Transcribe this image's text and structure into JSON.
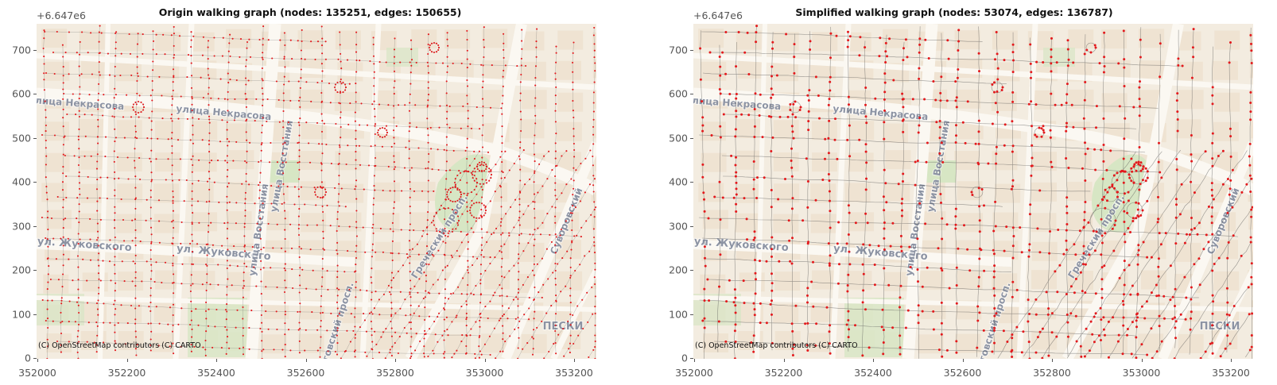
{
  "panels": [
    {
      "id": "left",
      "title": "Origin walking graph (nodes: 135251, edges: 150655)",
      "y_offset_label": "+6.647e6",
      "x_ticks": [
        "352000",
        "352200",
        "352400",
        "352600",
        "352800",
        "353000",
        "353200"
      ],
      "y_ticks": [
        "0",
        "100",
        "200",
        "300",
        "400",
        "500",
        "600",
        "700"
      ],
      "attribution": "(C) OpenStreetMap contributors (C) CARTO",
      "style": "origin"
    },
    {
      "id": "right",
      "title": "Simplified walking graph (nodes: 53074, edges: 136787)",
      "y_offset_label": "+6.647e6",
      "x_ticks": [
        "352000",
        "352200",
        "352400",
        "352600",
        "352800",
        "353000",
        "353200"
      ],
      "y_ticks": [
        "0",
        "100",
        "200",
        "300",
        "400",
        "500",
        "600",
        "700"
      ],
      "attribution": "(C) OpenStreetMap contributors (C) CARTO",
      "style": "simplified"
    }
  ],
  "map_labels": [
    {
      "text": "улица Некрасова"
    },
    {
      "text": "улица Некрасова"
    },
    {
      "text": "ул. Жуковского"
    },
    {
      "text": "ул. Жуковского"
    },
    {
      "text": "улица Восстания"
    },
    {
      "text": "улица Восстания"
    },
    {
      "text": "Лиговский просп."
    },
    {
      "text": "Греческий просп."
    },
    {
      "text": "Суворовский"
    },
    {
      "text": "ПЕСКИ"
    }
  ],
  "colors": {
    "map_bg": "#f3ece0",
    "block": "#ebdcc6",
    "park": "#d7e6c4",
    "street": "#fbf8f2",
    "label": "#8c93a3",
    "node": "#e3191c",
    "edge": "#4a4a4a"
  }
}
